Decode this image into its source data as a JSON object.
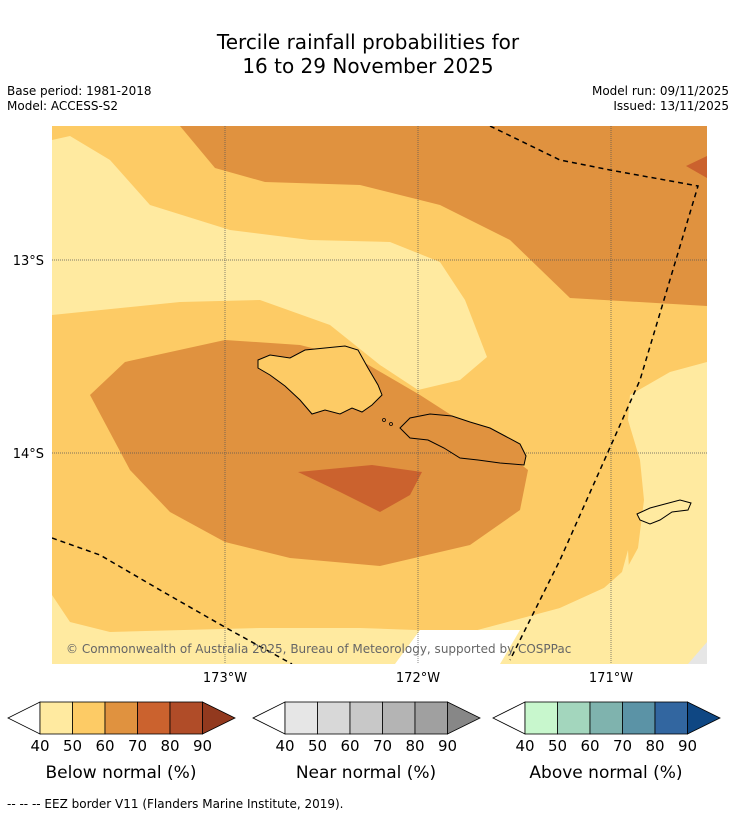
{
  "title_line1": "Tercile rainfall probabilities for",
  "title_line2": "16 to 29 November 2025",
  "base_period": "Base period: 1981-2018",
  "model": "Model: ACCESS-S2",
  "model_run": "Model run: 09/11/2025",
  "issued": "Issued: 13/11/2025",
  "map": {
    "lat_labels": [
      "13°S",
      "14°S"
    ],
    "lon_labels": [
      "173°W",
      "172°W",
      "171°W"
    ],
    "copyright": "© Commonwealth of Australia 2025, Bureau of Meteorology, supported by COSPPac"
  },
  "legends": [
    {
      "title": "Below normal (%)",
      "ticks": [
        "40",
        "50",
        "60",
        "70",
        "80",
        "90"
      ],
      "colors": [
        "#ffeaa0",
        "#fdcb65",
        "#e0923f",
        "#cb622e",
        "#b04c28",
        "#92391e"
      ]
    },
    {
      "title": "Near normal (%)",
      "ticks": [
        "40",
        "50",
        "60",
        "70",
        "80",
        "90"
      ],
      "colors": [
        "#e6e6e6",
        "#d8d8d8",
        "#c8c8c8",
        "#b4b4b4",
        "#a0a0a0",
        "#878787"
      ]
    },
    {
      "title": "Above normal (%)",
      "ticks": [
        "40",
        "50",
        "60",
        "70",
        "80",
        "90"
      ],
      "colors": [
        "#c8f7cd",
        "#a3d6bd",
        "#7fb3ae",
        "#5b93a6",
        "#3266a0",
        "#0f4783"
      ]
    }
  ],
  "footnote": "--  --  -- EEZ border V11 (Flanders Marine Institute, 2019)."
}
